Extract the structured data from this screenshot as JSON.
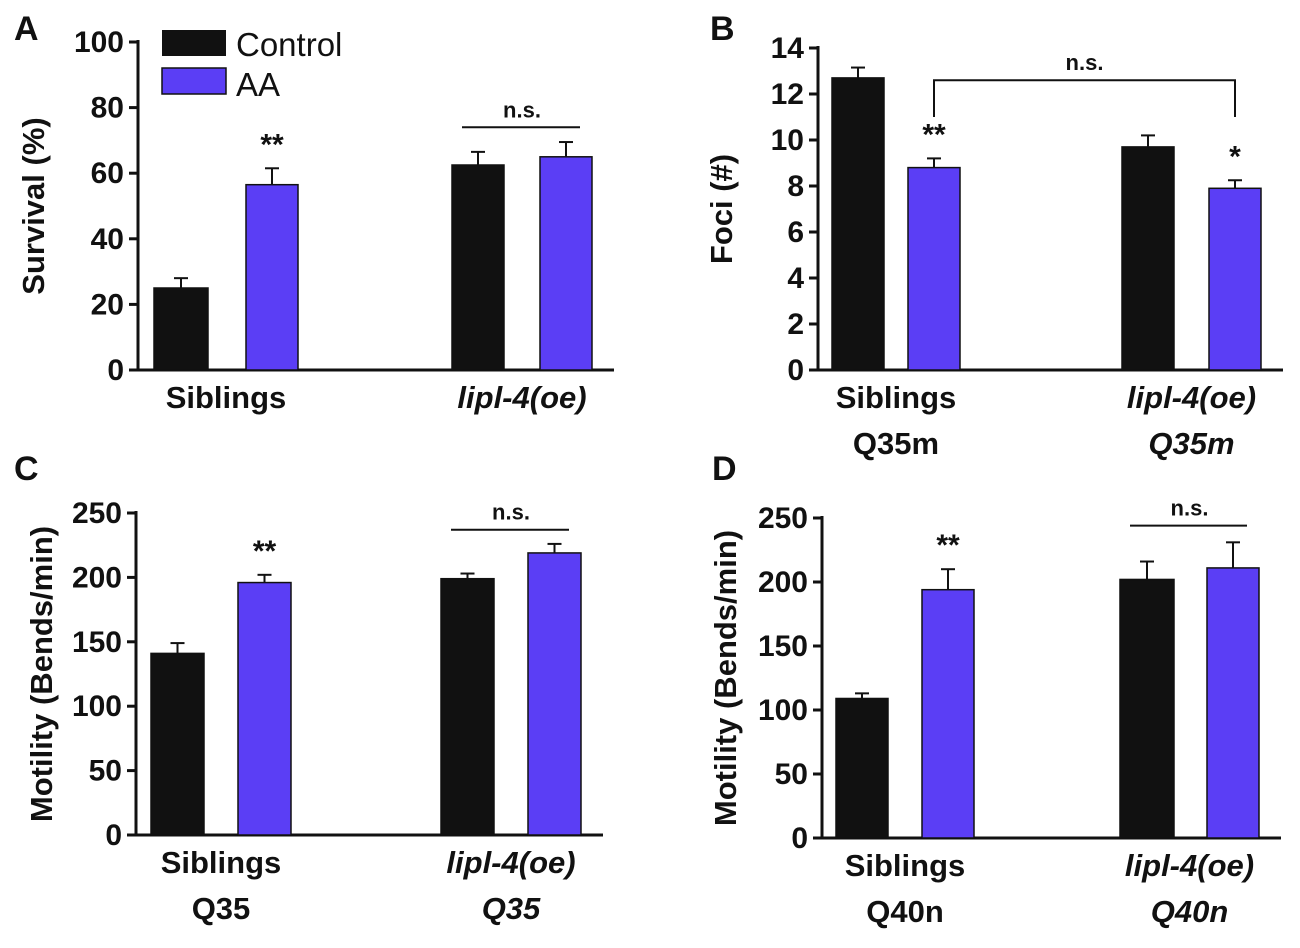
{
  "legend": [
    {
      "label": "Control",
      "color": "#111111"
    },
    {
      "label": "AA",
      "color": "#5b3ef5"
    }
  ],
  "colors": {
    "control": "#111111",
    "aa": "#5b3ef5",
    "axis": "#111111"
  },
  "chart_data": [
    {
      "id": "A",
      "type": "bar",
      "panel_label": "A",
      "ylabel": "Survival (%)",
      "ylim": [
        0,
        100
      ],
      "yticks": [
        0,
        20,
        40,
        60,
        80,
        100
      ],
      "categories": [
        {
          "lines": [
            "Siblings"
          ],
          "italic": false
        },
        {
          "lines": [
            "lipl-4(oe)"
          ],
          "italic": true
        }
      ],
      "series": [
        {
          "name": "Control",
          "values": [
            25,
            62.5
          ],
          "errors": [
            3,
            4
          ]
        },
        {
          "name": "AA",
          "values": [
            56.5,
            65
          ],
          "errors": [
            5,
            4.5
          ]
        }
      ],
      "annotations": [
        {
          "type": "star",
          "text": "**",
          "category": 0,
          "series": 1
        },
        {
          "type": "bar-line",
          "text": "n.s.",
          "category": 1,
          "level": 74
        }
      ]
    },
    {
      "id": "B",
      "type": "bar",
      "panel_label": "B",
      "ylabel": "Foci (#)",
      "ylim": [
        0,
        14
      ],
      "yticks": [
        0,
        2,
        4,
        6,
        8,
        10,
        12,
        14
      ],
      "categories": [
        {
          "lines": [
            "Siblings",
            "Q35m"
          ],
          "italic": false
        },
        {
          "lines": [
            "lipl-4(oe)",
            "Q35m"
          ],
          "italic": true
        }
      ],
      "series": [
        {
          "name": "Control",
          "values": [
            12.7,
            9.7
          ],
          "errors": [
            0.45,
            0.5
          ]
        },
        {
          "name": "AA",
          "values": [
            8.8,
            7.9
          ],
          "errors": [
            0.4,
            0.35
          ]
        }
      ],
      "annotations": [
        {
          "type": "star",
          "text": "**",
          "category": 0,
          "series": 1
        },
        {
          "type": "star",
          "text": "*",
          "category": 1,
          "series": 1
        },
        {
          "type": "bracket",
          "text": "n.s.",
          "from": [
            0,
            1
          ],
          "to": [
            1,
            1
          ],
          "level": 12.6,
          "drop_to": 11.0
        }
      ]
    },
    {
      "id": "C",
      "type": "bar",
      "panel_label": "C",
      "ylabel": "Motility (Bends/min)",
      "ylim": [
        0,
        250
      ],
      "yticks": [
        0,
        50,
        100,
        150,
        200,
        250
      ],
      "categories": [
        {
          "lines": [
            "Siblings",
            "Q35"
          ],
          "italic": false
        },
        {
          "lines": [
            "lipl-4(oe)",
            "Q35"
          ],
          "italic": true
        }
      ],
      "series": [
        {
          "name": "Control",
          "values": [
            141,
            199
          ],
          "errors": [
            8,
            4
          ]
        },
        {
          "name": "AA",
          "values": [
            196,
            219
          ],
          "errors": [
            6,
            7
          ]
        }
      ],
      "annotations": [
        {
          "type": "star",
          "text": "**",
          "category": 0,
          "series": 1
        },
        {
          "type": "bar-line",
          "text": "n.s.",
          "category": 1,
          "level": 237
        }
      ]
    },
    {
      "id": "D",
      "type": "bar",
      "panel_label": "D",
      "ylabel": "Motility (Bends/min)",
      "ylim": [
        0,
        250
      ],
      "yticks": [
        0,
        50,
        100,
        150,
        200,
        250
      ],
      "categories": [
        {
          "lines": [
            "Siblings",
            "Q40n"
          ],
          "italic": false
        },
        {
          "lines": [
            "lipl-4(oe)",
            "Q40n"
          ],
          "italic": true
        }
      ],
      "series": [
        {
          "name": "Control",
          "values": [
            109,
            202
          ],
          "errors": [
            4,
            14
          ]
        },
        {
          "name": "AA",
          "values": [
            194,
            211
          ],
          "errors": [
            16,
            20
          ]
        }
      ],
      "annotations": [
        {
          "type": "star",
          "text": "**",
          "category": 0,
          "series": 1
        },
        {
          "type": "bar-line",
          "text": "n.s.",
          "category": 1,
          "level": 244
        }
      ]
    }
  ]
}
